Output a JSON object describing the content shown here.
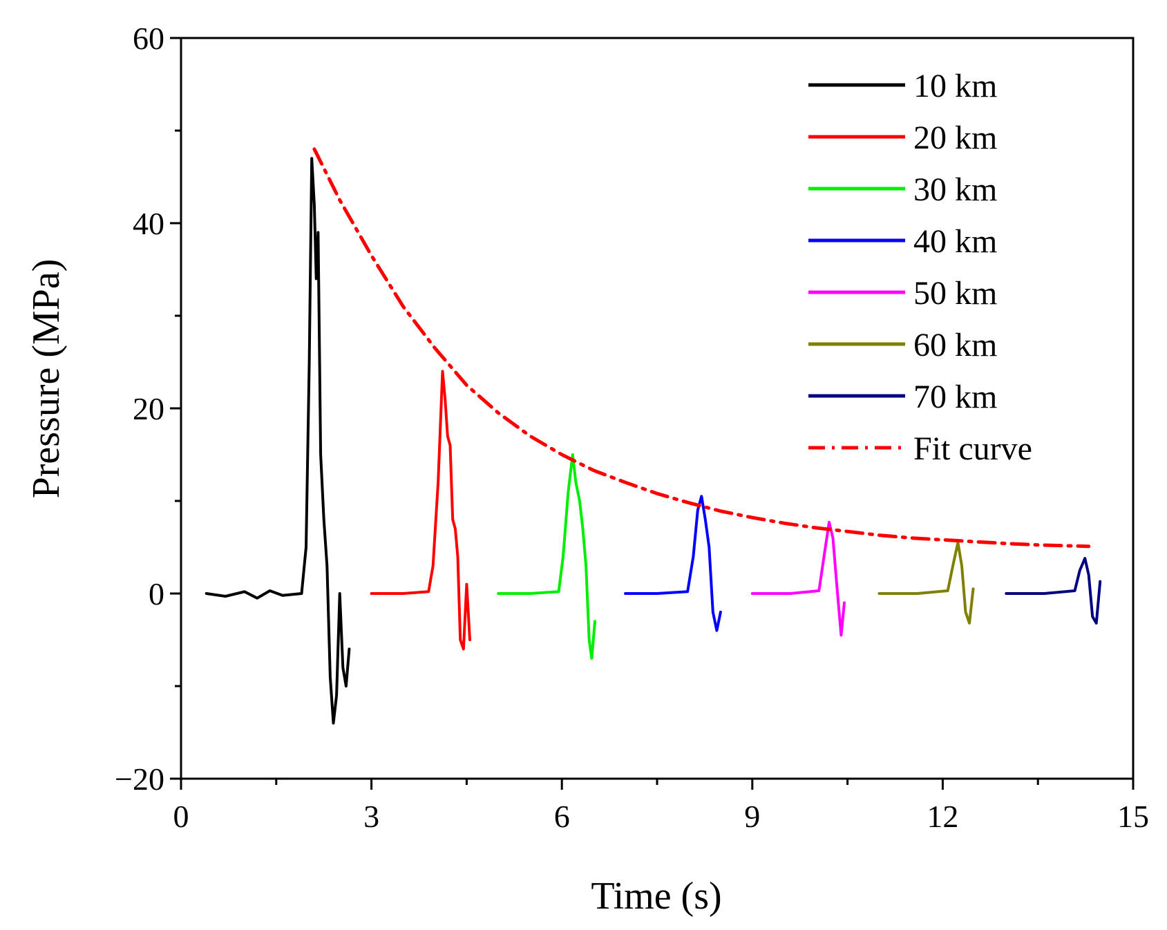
{
  "chart_data": {
    "type": "line",
    "title": "",
    "xlabel": "Time (s)",
    "ylabel": "Pressure (MPa)",
    "xlim": [
      0,
      15
    ],
    "ylim": [
      -20,
      60
    ],
    "x_ticks": [
      0,
      3,
      6,
      9,
      12,
      15
    ],
    "x_tick_labels": [
      "0",
      "3",
      "6",
      "9",
      "12",
      "15"
    ],
    "y_ticks": [
      -20,
      0,
      20,
      40,
      60
    ],
    "y_tick_labels": [
      "−20",
      "0",
      "20",
      "40",
      "60"
    ],
    "grid": false,
    "legend_position": "top-right",
    "series": [
      {
        "name": "10 km",
        "color": "#000000",
        "style": "solid",
        "x": [
          0.4,
          0.7,
          1.0,
          1.2,
          1.4,
          1.6,
          1.9,
          1.97,
          2.02,
          2.06,
          2.1,
          2.13,
          2.16,
          2.2,
          2.25,
          2.3,
          2.35,
          2.4,
          2.45,
          2.5,
          2.55,
          2.6,
          2.65
        ],
        "y": [
          0,
          -0.3,
          0.2,
          -0.5,
          0.3,
          -0.2,
          0,
          5,
          25,
          47,
          42,
          34,
          39,
          15,
          8,
          3,
          -9,
          -14,
          -11,
          0,
          -8,
          -10,
          -6
        ]
      },
      {
        "name": "20 km",
        "color": "#ff0000",
        "style": "solid",
        "x": [
          3.0,
          3.5,
          3.9,
          3.97,
          4.05,
          4.12,
          4.16,
          4.2,
          4.24,
          4.28,
          4.32,
          4.36,
          4.4,
          4.45,
          4.5,
          4.55
        ],
        "y": [
          0,
          0,
          0.2,
          3,
          12,
          24,
          21,
          17,
          16,
          8,
          7,
          4,
          -5,
          -6,
          1,
          -5
        ]
      },
      {
        "name": "30 km",
        "color": "#00ee00",
        "style": "solid",
        "x": [
          5.0,
          5.5,
          5.95,
          6.02,
          6.1,
          6.17,
          6.22,
          6.28,
          6.33,
          6.38,
          6.43,
          6.47,
          6.52
        ],
        "y": [
          0,
          0,
          0.2,
          4,
          11,
          15,
          12,
          10,
          7,
          3,
          -5,
          -7,
          -3
        ]
      },
      {
        "name": "40 km",
        "color": "#0000ff",
        "style": "solid",
        "x": [
          7.0,
          7.5,
          7.98,
          8.07,
          8.14,
          8.2,
          8.26,
          8.32,
          8.38,
          8.44,
          8.5
        ],
        "y": [
          0,
          0,
          0.2,
          4,
          9,
          10.5,
          8,
          5,
          -2,
          -4,
          -2
        ]
      },
      {
        "name": "50 km",
        "color": "#ff00ff",
        "style": "solid",
        "x": [
          9.0,
          9.6,
          10.05,
          10.13,
          10.21,
          10.27,
          10.33,
          10.4,
          10.45
        ],
        "y": [
          0,
          0,
          0.3,
          4,
          7.7,
          6,
          1,
          -4.5,
          -1
        ]
      },
      {
        "name": "60 km",
        "color": "#808000",
        "style": "solid",
        "x": [
          11.0,
          11.6,
          12.08,
          12.16,
          12.24,
          12.3,
          12.36,
          12.42,
          12.48
        ],
        "y": [
          0,
          0,
          0.3,
          3,
          5.5,
          3,
          -2,
          -3.2,
          0.5
        ]
      },
      {
        "name": "70 km",
        "color": "#000080",
        "style": "solid",
        "x": [
          13.0,
          13.6,
          14.08,
          14.16,
          14.24,
          14.3,
          14.36,
          14.42,
          14.48
        ],
        "y": [
          0,
          0,
          0.3,
          2.5,
          3.8,
          2,
          -2.5,
          -3.2,
          1.3
        ]
      },
      {
        "name": "Fit curve",
        "color": "#ff0000",
        "style": "dash-dot",
        "x": [
          2.1,
          2.5,
          3.0,
          3.5,
          4.0,
          4.5,
          5.0,
          5.5,
          6.0,
          6.5,
          7.0,
          7.5,
          8.0,
          8.5,
          9.0,
          9.5,
          10.0,
          10.5,
          11.0,
          11.5,
          12.0,
          12.5,
          13.0,
          13.5,
          14.0,
          14.3
        ],
        "y": [
          48,
          42.5,
          36.5,
          31,
          26.5,
          22.5,
          19.5,
          17,
          15,
          13.3,
          12,
          10.8,
          9.8,
          8.9,
          8.2,
          7.6,
          7.1,
          6.7,
          6.3,
          6.0,
          5.8,
          5.6,
          5.4,
          5.25,
          5.15,
          5.1
        ]
      }
    ]
  }
}
